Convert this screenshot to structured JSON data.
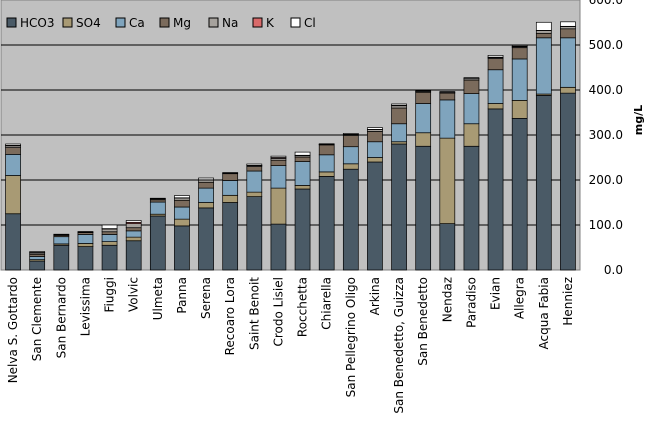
{
  "chart_data": {
    "type": "bar",
    "stacked": true,
    "ylabel": "mg/L",
    "ylim": [
      0,
      600
    ],
    "yticks": [
      "0.0",
      "100.0",
      "200.0",
      "300.0",
      "400.0",
      "500.0",
      "600.0"
    ],
    "grid": true,
    "legend_position": "top-left",
    "categories": [
      "Nelva S. Gottardo",
      "San Clemente",
      "San Bernardo",
      "Levissima",
      "Fiuggi",
      "Volvic",
      "Ulmeta",
      "Panna",
      "Serena",
      "Recoaro Lora",
      "Saint Benoit",
      "Crodo Lisiel",
      "Rocchetta",
      "Chiarella",
      "San Pellegrino Oligo",
      "Arkina",
      "San Benedetto, Guizza",
      "San Benedetto",
      "Nendaz",
      "Paradiso",
      "Evian",
      "Allegra",
      "Acqua Fabia",
      "Henniez"
    ],
    "series": [
      {
        "name": "HCO3",
        "color": "#4a5a66",
        "values": [
          125,
          20,
          55,
          52,
          55,
          65,
          120,
          98,
          138,
          150,
          163,
          102,
          180,
          208,
          224,
          240,
          280,
          275,
          103,
          275,
          358,
          337,
          388,
          393
        ]
      },
      {
        "name": "SO4",
        "color": "#a89a74",
        "values": [
          85,
          3,
          3,
          7,
          8,
          8,
          4,
          15,
          12,
          16,
          10,
          80,
          8,
          10,
          12,
          10,
          5,
          30,
          190,
          50,
          12,
          40,
          3,
          13
        ]
      },
      {
        "name": "Ca",
        "color": "#7fa4bd",
        "values": [
          47,
          7,
          16,
          20,
          16,
          14,
          27,
          27,
          32,
          33,
          47,
          50,
          53,
          38,
          38,
          35,
          40,
          65,
          85,
          67,
          75,
          92,
          125,
          110
        ]
      },
      {
        "name": "Mg",
        "color": "#7b6b5c",
        "values": [
          15,
          5,
          3,
          4,
          6,
          7,
          5,
          15,
          13,
          15,
          10,
          12,
          10,
          22,
          25,
          23,
          35,
          25,
          15,
          30,
          25,
          25,
          10,
          20
        ]
      },
      {
        "name": "Na",
        "color": "#a6a29d",
        "values": [
          4,
          3,
          1,
          1,
          6,
          9,
          2,
          5,
          5,
          1,
          2,
          4,
          3,
          1,
          2,
          4,
          5,
          2,
          2,
          3,
          2,
          2,
          6,
          5
        ]
      },
      {
        "name": "K",
        "color": "#d96a6a",
        "values": [
          1,
          1,
          0.5,
          0.5,
          1,
          3,
          0.5,
          0.5,
          0.5,
          0.5,
          0.5,
          2,
          1,
          0.5,
          0.5,
          0.5,
          1,
          0.5,
          0.5,
          0.5,
          1,
          1,
          0.5,
          0.5
        ]
      },
      {
        "name": "Cl",
        "color": "#ffffff",
        "values": [
          3,
          2,
          1,
          1,
          8,
          4,
          1,
          5,
          4,
          1,
          3,
          3,
          7,
          1,
          2,
          4,
          3,
          1,
          1,
          2,
          4,
          2,
          18,
          10
        ]
      }
    ]
  }
}
